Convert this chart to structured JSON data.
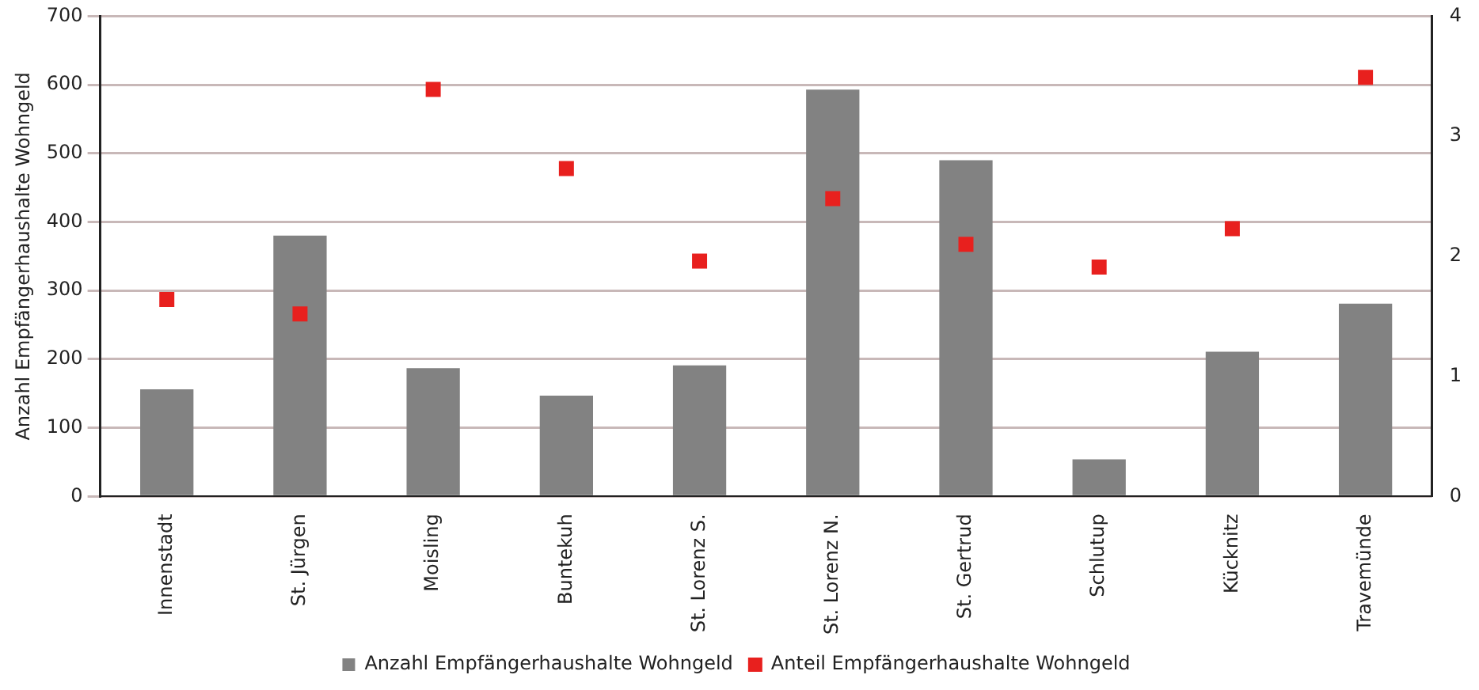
{
  "chart_data": {
    "type": "bar",
    "ylabel": "Anzahl Empfängerhaushalte Wohngeld",
    "categories": [
      "Innenstadt",
      "St. Jürgen",
      "Moisling",
      "Buntekuh",
      "St. Lorenz S.",
      "St. Lorenz N.",
      "St. Gertrud",
      "Schlutup",
      "Kücknitz",
      "Travemünde"
    ],
    "series": [
      {
        "name": "Anzahl Empfängerhaushalte Wohngeld",
        "color": "#828282",
        "values": [
          156,
          380,
          187,
          147,
          191,
          593,
          490,
          54,
          211,
          281
        ]
      },
      {
        "name": "Anteil Empfängerhaushalte Wohngeld",
        "type": "scatter",
        "axis": "y2",
        "color": "#e8201e",
        "marker": "square",
        "values": [
          1.64,
          1.52,
          3.39,
          2.73,
          1.96,
          2.48,
          2.1,
          1.91,
          2.23,
          3.49
        ]
      }
    ],
    "ylim": [
      0,
      700
    ],
    "yticks": [
      0,
      100,
      200,
      300,
      400,
      500,
      600,
      700
    ],
    "y2lim": [
      0,
      4
    ],
    "y2ticks": [
      0,
      1,
      2,
      3,
      4
    ],
    "grid": "y",
    "legend": "bottom"
  }
}
